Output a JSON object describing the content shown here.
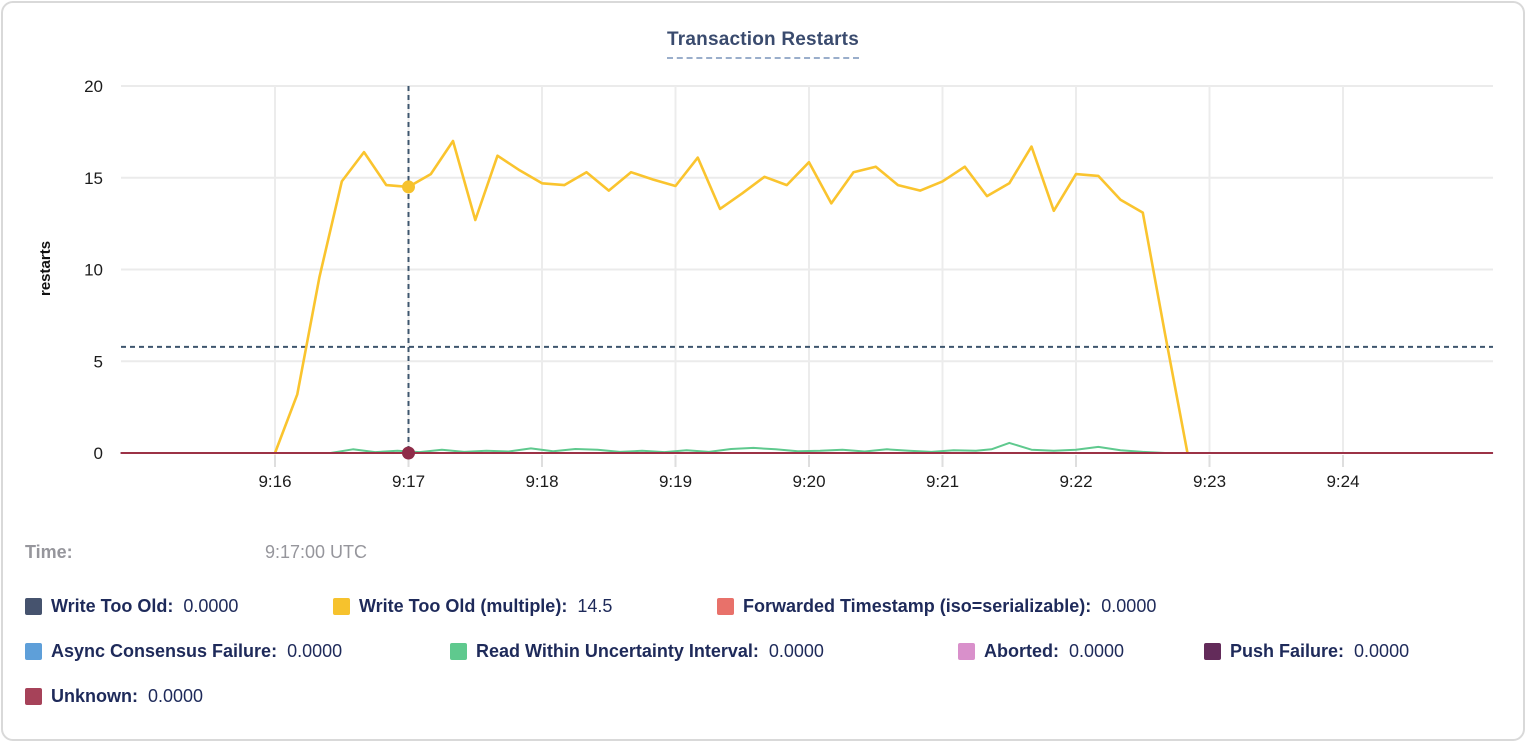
{
  "chart": {
    "title": "Transaction Restarts",
    "y_axis_label": "restarts"
  },
  "legend": {
    "time_label": "Time:",
    "time_value": "9:17:00 UTC",
    "rows": [
      {
        "items": [
          {
            "label": "Write Too Old:",
            "value": "0.0000",
            "color": "#46536E"
          },
          {
            "label": "Write Too Old (multiple):",
            "value": "14.5",
            "color": "#F6C22D"
          },
          {
            "label": "Forwarded Timestamp (iso=serializable):",
            "value": "0.0000",
            "color": "#E8716A"
          }
        ]
      },
      {
        "items": [
          {
            "label": "Async Consensus Failure:",
            "value": "0.0000",
            "color": "#5E9FD9"
          },
          {
            "label": "Read Within Uncertainty Interval:",
            "value": "0.0000",
            "color": "#5FC98E"
          },
          {
            "label": "Aborted:",
            "value": "0.0000",
            "color": "#D990CB"
          },
          {
            "label": "Push Failure:",
            "value": "0.0000",
            "color": "#632B5A"
          }
        ]
      },
      {
        "items": [
          {
            "label": "Unknown:",
            "value": "0.0000",
            "color": "#A64259"
          }
        ]
      }
    ]
  },
  "chart_data": {
    "type": "line",
    "title": "Transaction Restarts",
    "xlabel": "",
    "ylabel": "restarts",
    "ylim": [
      0,
      20
    ],
    "yticks": [
      0,
      5,
      10,
      15,
      20
    ],
    "grid": true,
    "legend_position": "bottom",
    "x_unit": "seconds after 9:16:00 UTC",
    "x_domain": [
      -69,
      547
    ],
    "xticks": [
      {
        "t": 0,
        "label": "9:16"
      },
      {
        "t": 60,
        "label": "9:17"
      },
      {
        "t": 120,
        "label": "9:18"
      },
      {
        "t": 180,
        "label": "9:19"
      },
      {
        "t": 240,
        "label": "9:20"
      },
      {
        "t": 300,
        "label": "9:21"
      },
      {
        "t": 360,
        "label": "9:22"
      },
      {
        "t": 420,
        "label": "9:23"
      },
      {
        "t": 480,
        "label": "9:24"
      }
    ],
    "hover": {
      "time_label": "Time:",
      "time_value": "9:17:00 UTC",
      "t": 60,
      "crosshair_value": 5.78,
      "crosshair_color": "#3E566E",
      "dots": [
        {
          "t": 60,
          "value": 14.5,
          "color": "#F6C22D"
        },
        {
          "t": 60,
          "value": 0,
          "color": "#8E2C48"
        }
      ]
    },
    "series": [
      {
        "name": "Write Too Old",
        "color": "#46536E",
        "value_at_hover": "0.0000",
        "points": [
          [
            -69,
            0
          ],
          [
            547,
            0
          ]
        ]
      },
      {
        "name": "Write Too Old (multiple)",
        "color": "#FAC42E",
        "value_at_hover": "14.5",
        "points": [
          [
            0,
            0
          ],
          [
            10,
            3.2
          ],
          [
            20,
            9.6
          ],
          [
            30,
            14.8
          ],
          [
            40,
            16.4
          ],
          [
            50,
            14.6
          ],
          [
            60,
            14.5
          ],
          [
            70,
            15.2
          ],
          [
            80,
            17.0
          ],
          [
            90,
            12.7
          ],
          [
            100,
            16.2
          ],
          [
            110,
            15.4
          ],
          [
            120,
            14.7
          ],
          [
            130,
            14.6
          ],
          [
            140,
            15.3
          ],
          [
            150,
            14.3
          ],
          [
            160,
            15.3
          ],
          [
            170,
            14.9
          ],
          [
            180,
            14.55
          ],
          [
            190,
            16.1
          ],
          [
            200,
            13.3
          ],
          [
            210,
            14.15
          ],
          [
            220,
            15.05
          ],
          [
            230,
            14.6
          ],
          [
            240,
            15.85
          ],
          [
            250,
            13.6
          ],
          [
            260,
            15.3
          ],
          [
            270,
            15.6
          ],
          [
            280,
            14.6
          ],
          [
            290,
            14.3
          ],
          [
            300,
            14.8
          ],
          [
            310,
            15.6
          ],
          [
            320,
            14.0
          ],
          [
            330,
            14.7
          ],
          [
            340,
            16.7
          ],
          [
            350,
            13.2
          ],
          [
            360,
            15.2
          ],
          [
            370,
            15.1
          ],
          [
            380,
            13.8
          ],
          [
            390,
            13.1
          ],
          [
            400,
            6.5
          ],
          [
            410,
            0.05
          ]
        ]
      },
      {
        "name": "Forwarded Timestamp (iso=serializable)",
        "color": "#E8716A",
        "value_at_hover": "0.0000",
        "points": [
          [
            -69,
            0
          ],
          [
            547,
            0
          ]
        ]
      },
      {
        "name": "Async Consensus Failure",
        "color": "#5E9FD9",
        "value_at_hover": "0.0000",
        "points": [
          [
            -69,
            0
          ],
          [
            547,
            0
          ]
        ]
      },
      {
        "name": "Read Within Uncertainty Interval",
        "color": "#5FC98E",
        "value_at_hover": "0.0000",
        "points": [
          [
            25,
            0
          ],
          [
            35,
            0.2
          ],
          [
            45,
            0.05
          ],
          [
            55,
            0.12
          ],
          [
            65,
            0.05
          ],
          [
            75,
            0.18
          ],
          [
            85,
            0.06
          ],
          [
            95,
            0.12
          ],
          [
            105,
            0.08
          ],
          [
            115,
            0.25
          ],
          [
            125,
            0.1
          ],
          [
            135,
            0.22
          ],
          [
            145,
            0.18
          ],
          [
            155,
            0.06
          ],
          [
            165,
            0.12
          ],
          [
            175,
            0.05
          ],
          [
            185,
            0.15
          ],
          [
            195,
            0.06
          ],
          [
            205,
            0.22
          ],
          [
            215,
            0.28
          ],
          [
            225,
            0.2
          ],
          [
            235,
            0.1
          ],
          [
            245,
            0.12
          ],
          [
            255,
            0.18
          ],
          [
            265,
            0.08
          ],
          [
            275,
            0.2
          ],
          [
            285,
            0.12
          ],
          [
            295,
            0.06
          ],
          [
            305,
            0.15
          ],
          [
            315,
            0.12
          ],
          [
            322,
            0.2
          ],
          [
            330,
            0.55
          ],
          [
            340,
            0.18
          ],
          [
            350,
            0.12
          ],
          [
            360,
            0.18
          ],
          [
            370,
            0.33
          ],
          [
            380,
            0.15
          ],
          [
            390,
            0.06
          ],
          [
            400,
            0
          ]
        ]
      },
      {
        "name": "Aborted",
        "color": "#D990CB",
        "value_at_hover": "0.0000",
        "points": [
          [
            -69,
            0
          ],
          [
            547,
            0
          ]
        ]
      },
      {
        "name": "Push Failure",
        "color": "#632B5A",
        "value_at_hover": "0.0000",
        "points": [
          [
            -69,
            0
          ],
          [
            547,
            0
          ]
        ]
      },
      {
        "name": "Unknown",
        "color": "#9C3246",
        "value_at_hover": "0.0000",
        "points": [
          [
            -69,
            0
          ],
          [
            547,
            0
          ]
        ]
      }
    ]
  }
}
